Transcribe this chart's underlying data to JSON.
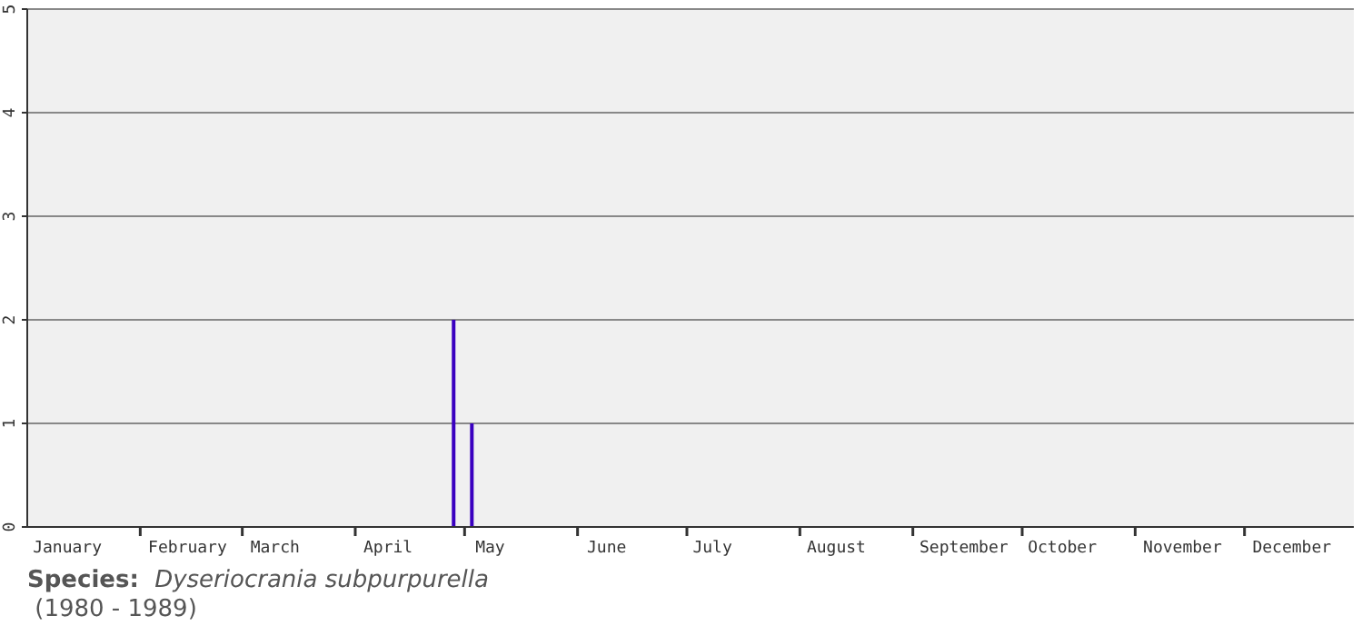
{
  "chart_data": {
    "type": "bar",
    "x": [
      "--04-28",
      "--05-03"
    ],
    "values": [
      2,
      1
    ],
    "color": "#3a00c0",
    "xlim": [
      "--01-01",
      "--12-31"
    ],
    "xticks": [
      {
        "value": "--02-01",
        "label": null
      },
      {
        "value": "--03-01",
        "label": null
      },
      {
        "value": "--04-01",
        "label": null
      },
      {
        "value": "--05-01",
        "label": null
      },
      {
        "value": "--06-01",
        "label": null
      },
      {
        "value": "--07-01",
        "label": null
      },
      {
        "value": "--08-01",
        "label": null
      },
      {
        "value": "--09-01",
        "label": null
      },
      {
        "value": "--10-01",
        "label": null
      },
      {
        "value": "--11-01",
        "label": null
      },
      {
        "value": "--12-01",
        "label": null
      },
      {
        "value": "--01-12",
        "label": "January"
      },
      {
        "value": "--02-14",
        "label": "February"
      },
      {
        "value": "--03-10",
        "label": "March"
      },
      {
        "value": "--04-10",
        "label": "April"
      },
      {
        "value": "--05-08",
        "label": "May"
      },
      {
        "value": "--06-09",
        "label": "June"
      },
      {
        "value": "--07-08",
        "label": "July"
      },
      {
        "value": "--08-11",
        "label": "August"
      },
      {
        "value": "--09-15",
        "label": "September"
      },
      {
        "value": "--10-12",
        "label": "October"
      },
      {
        "value": "--11-14",
        "label": "November"
      },
      {
        "value": "--12-14",
        "label": "December"
      }
    ],
    "ylim": [
      0,
      5
    ],
    "yticks": [
      0,
      1,
      2,
      3,
      4,
      5
    ],
    "grid": "y",
    "annotations": [
      "Species:",
      "Dyseriocrania subpurpurella",
      "(1980 - 1989)"
    ]
  }
}
